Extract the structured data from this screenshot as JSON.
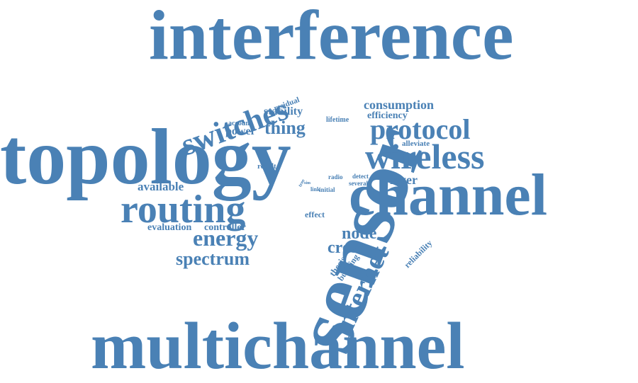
{
  "cloud": {
    "color": "#4a81b5",
    "words": [
      {
        "id": "interference",
        "text": "interference",
        "weight": 10
      },
      {
        "id": "multichannel",
        "text": "multichannel",
        "weight": 10
      },
      {
        "id": "topology",
        "text": "topology",
        "weight": 9
      },
      {
        "id": "sensor",
        "text": "sensor",
        "weight": 10
      },
      {
        "id": "channel",
        "text": "channel",
        "weight": 8
      },
      {
        "id": "routing",
        "text": "routing",
        "weight": 6
      },
      {
        "id": "wireless",
        "text": "wireless",
        "weight": 6
      },
      {
        "id": "protocol",
        "text": "protocol",
        "weight": 5
      },
      {
        "id": "switches",
        "text": "switches",
        "weight": 5
      },
      {
        "id": "internet",
        "text": "internet",
        "weight": 5
      },
      {
        "id": "energy",
        "text": "energy",
        "weight": 4
      },
      {
        "id": "spectrum",
        "text": "spectrum",
        "weight": 3
      },
      {
        "id": "node",
        "text": "node",
        "weight": 3
      },
      {
        "id": "cross",
        "text": "cross",
        "weight": 3
      },
      {
        "id": "thing",
        "text": "thing",
        "weight": 3
      },
      {
        "id": "consumption",
        "text": "consumption",
        "weight": 2
      },
      {
        "id": "layer",
        "text": "layer",
        "weight": 2
      },
      {
        "id": "available",
        "text": "available",
        "weight": 2
      },
      {
        "id": "stability",
        "text": "stability",
        "weight": 2
      },
      {
        "id": "power",
        "text": "power",
        "weight": 2
      },
      {
        "id": "efficiency",
        "text": "efficiency",
        "weight": 2
      },
      {
        "id": "evaluation",
        "text": "evaluation",
        "weight": 2
      },
      {
        "id": "controller",
        "text": "controller",
        "weight": 2
      },
      {
        "id": "residual",
        "text": "residual",
        "weight": 1
      },
      {
        "id": "account",
        "text": "account",
        "weight": 1
      },
      {
        "id": "lifetime",
        "text": "lifetime",
        "weight": 1
      },
      {
        "id": "alleviate",
        "text": "alleviate",
        "weight": 1
      },
      {
        "id": "result",
        "text": "result",
        "weight": 1
      },
      {
        "id": "radio",
        "text": "radio",
        "weight": 1
      },
      {
        "id": "detect",
        "text": "detect",
        "weight": 1
      },
      {
        "id": "several",
        "text": "several",
        "weight": 1
      },
      {
        "id": "initial",
        "text": "initial",
        "weight": 1
      },
      {
        "id": "link",
        "text": "link",
        "weight": 1
      },
      {
        "id": "sim",
        "text": "sim",
        "weight": 1
      },
      {
        "id": "tree",
        "text": "tree",
        "weight": 1
      },
      {
        "id": "effect",
        "text": "effect",
        "weight": 1
      },
      {
        "id": "thesis",
        "text": "thesis",
        "weight": 1
      },
      {
        "id": "building",
        "text": "building",
        "weight": 1
      },
      {
        "id": "reliability",
        "text": "reliability",
        "weight": 1
      }
    ]
  }
}
